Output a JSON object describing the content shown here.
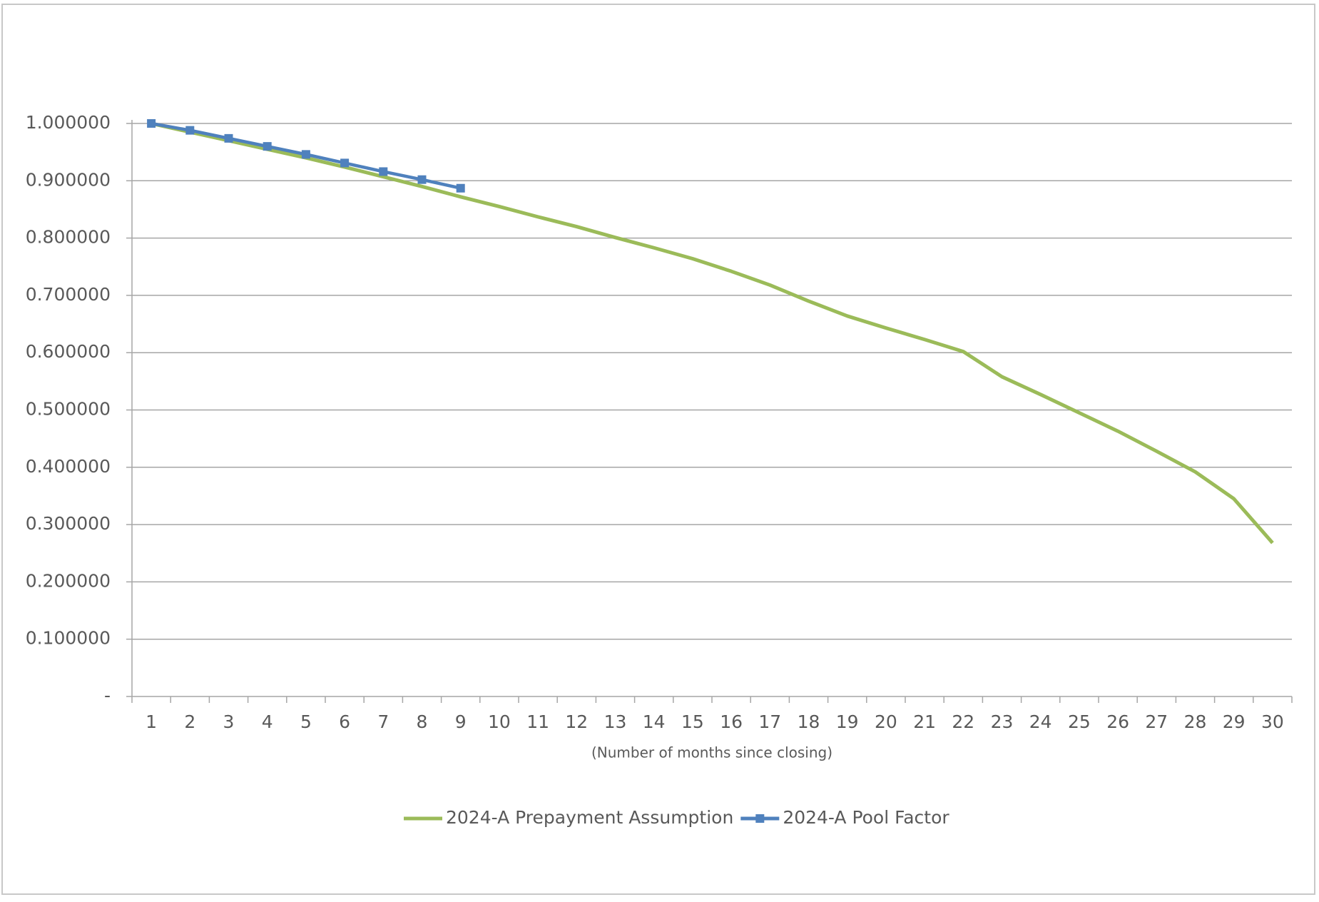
{
  "chart_data": {
    "type": "line",
    "x_label": "(Number  of months since closing)",
    "categories": [
      "1",
      "2",
      "3",
      "4",
      "5",
      "6",
      "7",
      "8",
      "9",
      "10",
      "11",
      "12",
      "13",
      "14",
      "15",
      "16",
      "17",
      "18",
      "19",
      "20",
      "21",
      "22",
      "23",
      "24",
      "25",
      "26",
      "27",
      "28",
      "29",
      "30"
    ],
    "series": [
      {
        "name": "2024-A Prepayment Assumption",
        "color": "#9bbb59",
        "marker": false,
        "values": [
          1.0,
          0.985,
          0.97,
          0.955,
          0.94,
          0.924,
          0.907,
          0.89,
          0.872,
          0.855,
          0.837,
          0.82,
          0.801,
          0.783,
          0.764,
          0.742,
          0.718,
          0.69,
          0.664,
          0.643,
          0.623,
          0.602,
          0.558,
          0.527,
          0.495,
          0.463,
          0.428,
          0.392,
          0.345,
          0.268
        ]
      },
      {
        "name": "2024-A Pool Factor",
        "color": "#4f81bd",
        "marker": true,
        "values": [
          1.0,
          0.988,
          0.974,
          0.96,
          0.946,
          0.931,
          0.916,
          0.902,
          0.887,
          null,
          null,
          null,
          null,
          null,
          null,
          null,
          null,
          null,
          null,
          null,
          null,
          null,
          null,
          null,
          null,
          null,
          null,
          null,
          null,
          null
        ]
      }
    ],
    "ylim": [
      0,
      1
    ],
    "yticks": [
      {
        "value": 0,
        "label": "-"
      },
      {
        "value": 0.1,
        "label": "0.100000"
      },
      {
        "value": 0.2,
        "label": "0.200000"
      },
      {
        "value": 0.3,
        "label": "0.300000"
      },
      {
        "value": 0.4,
        "label": "0.400000"
      },
      {
        "value": 0.5,
        "label": "0.500000"
      },
      {
        "value": 0.6,
        "label": "0.600000"
      },
      {
        "value": 0.7,
        "label": "0.700000"
      },
      {
        "value": 0.8,
        "label": "0.800000"
      },
      {
        "value": 0.9,
        "label": "0.900000"
      },
      {
        "value": 1,
        "label": "1.000000"
      }
    ],
    "grid": true,
    "legend": "bottom"
  }
}
